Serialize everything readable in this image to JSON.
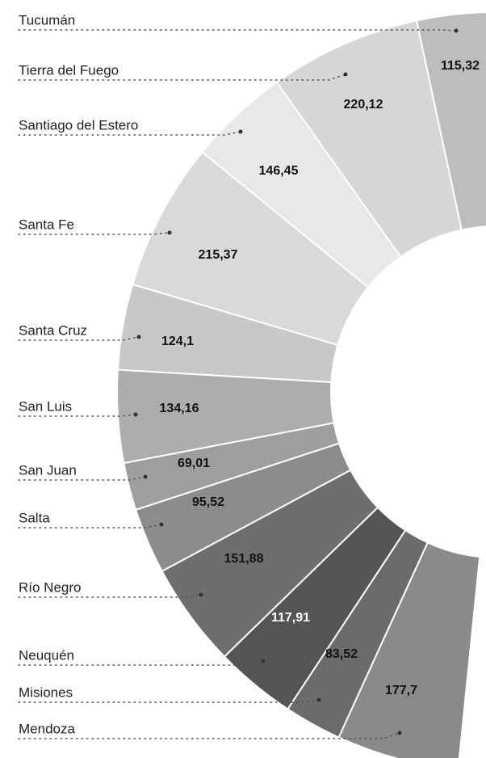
{
  "chart_data": {
    "type": "donut",
    "categories": [
      "Tucumán",
      "Tierra del Fuego",
      "Santiago del  Estero",
      "Santa Fe",
      "Santa Cruz",
      "San Luis",
      "San Juan",
      "Salta",
      "Río Negro",
      "Neuquén",
      "Misiones",
      "Mendoza"
    ],
    "values": [
      115.32,
      220.12,
      146.45,
      215.37,
      124.1,
      134.16,
      69.01,
      95.52,
      151.88,
      117.91,
      83.52,
      177.7
    ],
    "value_labels": [
      "115,32",
      "220,12",
      "146,45",
      "215,37",
      "124,1",
      "134,16",
      "69,01",
      "95,52",
      "151,88",
      "117,91",
      "83,52",
      "177,7"
    ],
    "colors": [
      "#bdbdbd",
      "#d6d6d6",
      "#e8e8e8",
      "#d9d9d9",
      "#c8c8c8",
      "#adadad",
      "#9e9e9e",
      "#8c8c8c",
      "#6e6e6e",
      "#555555",
      "#6b6b6b",
      "#8a8a8a"
    ]
  }
}
